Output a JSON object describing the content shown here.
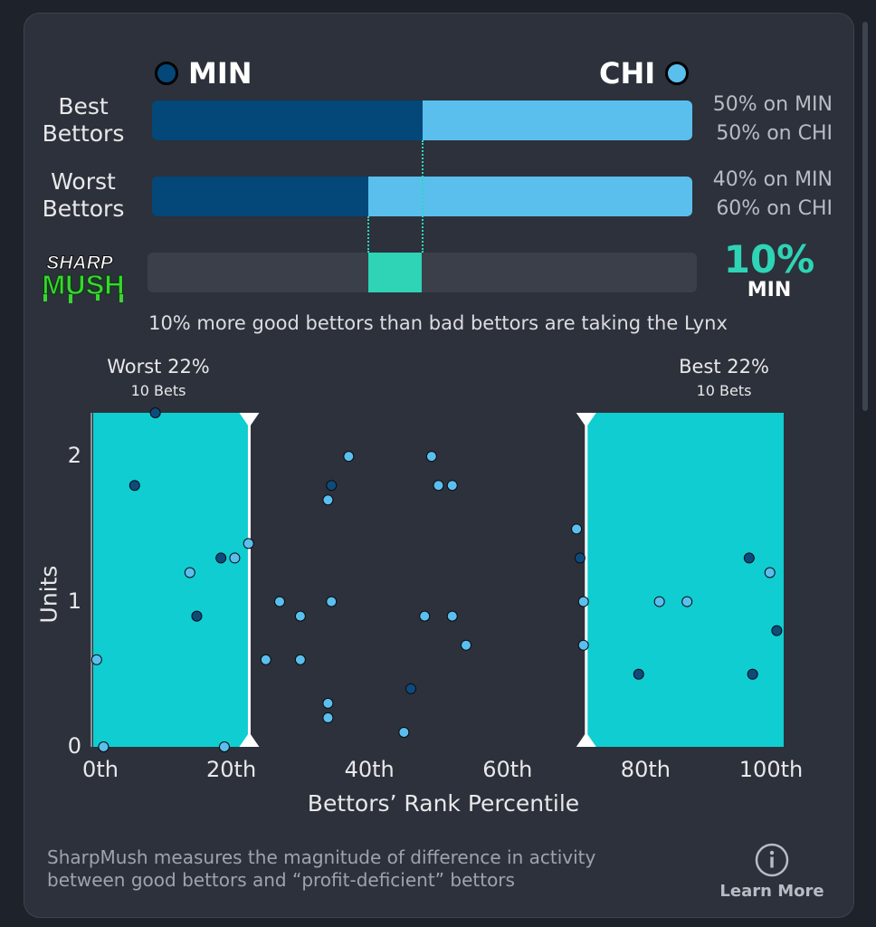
{
  "teams": {
    "away": {
      "abbr": "MIN",
      "color": "#044779"
    },
    "home": {
      "abbr": "CHI",
      "color": "#5bbfee"
    }
  },
  "rows": [
    {
      "label_line1": "Best",
      "label_line2": "Bettors",
      "min_pct": 50,
      "chi_pct": 50,
      "min_text": "50% on MIN",
      "chi_text": "50% on CHI"
    },
    {
      "label_line1": "Worst",
      "label_line2": "Bettors",
      "min_pct": 40,
      "chi_pct": 60,
      "min_text": "40% on MIN",
      "chi_text": "60% on CHI"
    }
  ],
  "sharpmush": {
    "logo_line1": "SHARP",
    "logo_line2": "MUSH",
    "value_pct": 10,
    "value_text": "10%",
    "team": "MIN",
    "accent": "#2ed4b5",
    "summary": "10% more good bettors than bad bettors are taking the Lynx"
  },
  "groups": {
    "worst": {
      "title": "Worst 22%",
      "sub": "10 Bets"
    },
    "best": {
      "title": "Best 22%",
      "sub": "10 Bets"
    }
  },
  "chart_data": {
    "type": "scatter",
    "xlabel": "Bettors’ Rank Percentile",
    "ylabel": "Units",
    "xlim": [
      0,
      100
    ],
    "ylim": [
      0,
      2.3
    ],
    "x_ticks": [
      "0th",
      "20th",
      "40th",
      "60th",
      "80th",
      "100th"
    ],
    "x_tick_values": [
      0,
      20,
      40,
      60,
      80,
      100
    ],
    "y_ticks": [
      "0",
      "1",
      "2"
    ],
    "y_tick_values": [
      0,
      1,
      2
    ],
    "highlight_ranges": [
      [
        0,
        22.6
      ],
      [
        71.4,
        100
      ]
    ],
    "highlight_color": "#0fcdd0",
    "series": [
      {
        "team": "MIN",
        "color": "#0f4a7c",
        "points": [
          [
            9,
            2.3
          ],
          [
            6,
            1.8
          ],
          [
            18.5,
            1.3
          ],
          [
            15,
            0.9
          ],
          [
            34.5,
            1.8
          ],
          [
            70.5,
            1.3
          ],
          [
            79,
            0.5
          ],
          [
            95,
            1.3
          ],
          [
            95.5,
            0.5
          ],
          [
            99,
            0.8
          ],
          [
            46,
            0.4
          ]
        ]
      },
      {
        "team": "CHI",
        "color": "#5bbfee",
        "points": [
          [
            0.5,
            0.6
          ],
          [
            1.5,
            0
          ],
          [
            14,
            1.2
          ],
          [
            20.5,
            1.3
          ],
          [
            19,
            0
          ],
          [
            22.5,
            1.4
          ],
          [
            25,
            0.6
          ],
          [
            27,
            1
          ],
          [
            30,
            0.9
          ],
          [
            30,
            0.6
          ],
          [
            34,
            1.7
          ],
          [
            34.5,
            1
          ],
          [
            37,
            2
          ],
          [
            34,
            0.3
          ],
          [
            34,
            0.2
          ],
          [
            45,
            0.1
          ],
          [
            48,
            0.9
          ],
          [
            49,
            2
          ],
          [
            50,
            1.8
          ],
          [
            52,
            1.8
          ],
          [
            52,
            0.9
          ],
          [
            54,
            0.7
          ],
          [
            70,
            1.5
          ],
          [
            71,
            1
          ],
          [
            71,
            0.7
          ],
          [
            82,
            1
          ],
          [
            86,
            1
          ],
          [
            98,
            1.2
          ]
        ]
      }
    ]
  },
  "footer": {
    "line1": "SharpMush measures the magnitude of difference in activity",
    "line2": "between good bettors and “profit-deficient” bettors",
    "learn_more": "Learn More",
    "info_icon": "info-icon"
  }
}
